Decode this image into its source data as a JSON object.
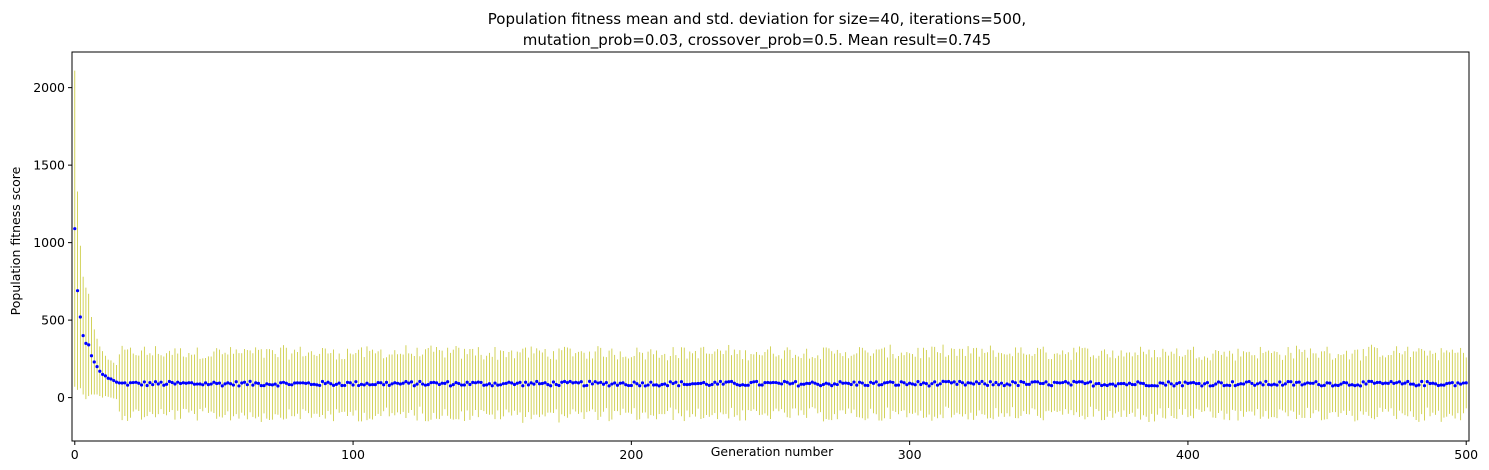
{
  "chart_data": {
    "type": "scatter",
    "title_lines": [
      "Population fitness mean and std. deviation for size=40, iterations=500,",
      "mutation_prob=0.03, crossover_prob=0.5. Mean result=0.745"
    ],
    "xlabel": "Generation number",
    "ylabel": "Population fitness score",
    "xlim": [
      -1,
      501
    ],
    "ylim": [
      -280,
      2230
    ],
    "x_ticks": [
      0,
      100,
      200,
      300,
      400,
      500
    ],
    "y_ticks": [
      0,
      500,
      1000,
      1500,
      2000
    ],
    "grid": false,
    "series": [
      {
        "kind": "mean_points",
        "color": "#0000ff",
        "x_start": 0,
        "x_step": 1,
        "count": 501,
        "initial_values": [
          1090,
          690,
          520,
          400,
          350,
          340,
          270,
          230,
          200,
          170,
          150,
          140,
          125,
          120,
          110,
          100
        ],
        "steady_value": 90
      },
      {
        "kind": "std_errorbars",
        "color": "#c8c832",
        "initial_std": [
          1020,
          640,
          460,
          380,
          360,
          330,
          250,
          210,
          180,
          160,
          150,
          130,
          120,
          120,
          115,
          110
        ],
        "steady_std": 200
      }
    ]
  }
}
